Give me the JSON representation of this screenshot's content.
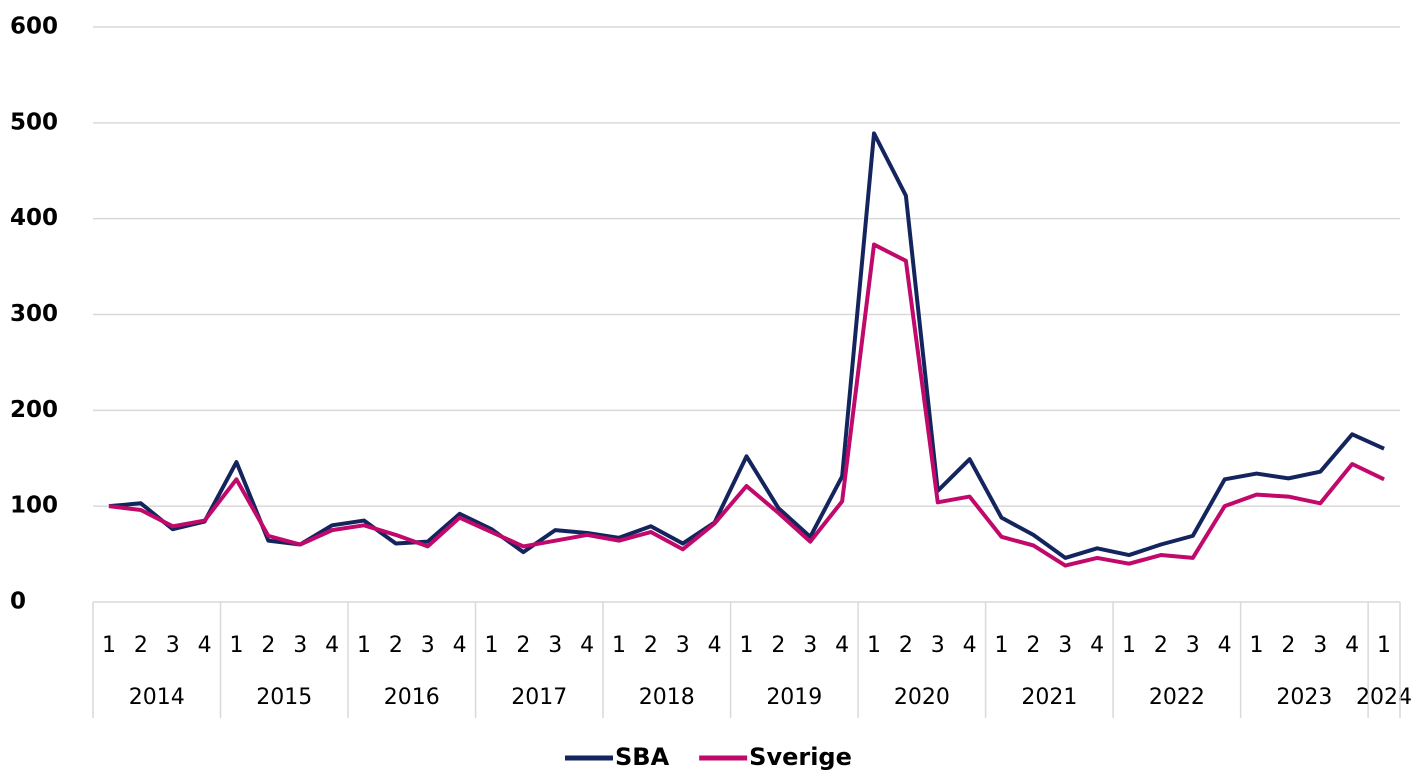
{
  "chart_data": {
    "type": "line",
    "groups": [
      {
        "name": "2014",
        "categories": [
          "1",
          "2",
          "3",
          "4"
        ]
      },
      {
        "name": "2015",
        "categories": [
          "1",
          "2",
          "3",
          "4"
        ]
      },
      {
        "name": "2016",
        "categories": [
          "1",
          "2",
          "3",
          "4"
        ]
      },
      {
        "name": "2017",
        "categories": [
          "1",
          "2",
          "3",
          "4"
        ]
      },
      {
        "name": "2018",
        "categories": [
          "1",
          "2",
          "3",
          "4"
        ]
      },
      {
        "name": "2019",
        "categories": [
          "1",
          "2",
          "3",
          "4"
        ]
      },
      {
        "name": "2020",
        "categories": [
          "1",
          "2",
          "3",
          "4"
        ]
      },
      {
        "name": "2021",
        "categories": [
          "1",
          "2",
          "3",
          "4"
        ]
      },
      {
        "name": "2022",
        "categories": [
          "1",
          "2",
          "3",
          "4"
        ]
      },
      {
        "name": "2023",
        "categories": [
          "1",
          "2",
          "3",
          "4"
        ]
      },
      {
        "name": "2024",
        "categories": [
          "1"
        ]
      }
    ],
    "series": [
      {
        "name": "SBA",
        "color": "#14255e",
        "values": [
          100,
          103,
          76,
          84,
          146,
          64,
          60,
          80,
          85,
          61,
          63,
          92,
          76,
          52,
          75,
          72,
          67,
          79,
          61,
          83,
          152,
          98,
          68,
          131,
          489,
          424,
          116,
          149,
          88,
          70,
          46,
          56,
          49,
          60,
          69,
          128,
          134,
          129,
          136,
          175,
          160
        ]
      },
      {
        "name": "Sverige",
        "color": "#c0096b",
        "values": [
          100,
          96,
          79,
          85,
          128,
          69,
          60,
          75,
          80,
          70,
          58,
          88,
          73,
          58,
          64,
          70,
          64,
          73,
          55,
          82,
          121,
          93,
          63,
          105,
          373,
          356,
          104,
          110,
          68,
          59,
          38,
          46,
          40,
          49,
          46,
          100,
          112,
          110,
          103,
          144,
          128
        ]
      }
    ],
    "ylim": [
      0,
      600
    ],
    "yticks": [
      0,
      100,
      200,
      300,
      400,
      500,
      600
    ],
    "grid": true,
    "legend": "bottom"
  }
}
